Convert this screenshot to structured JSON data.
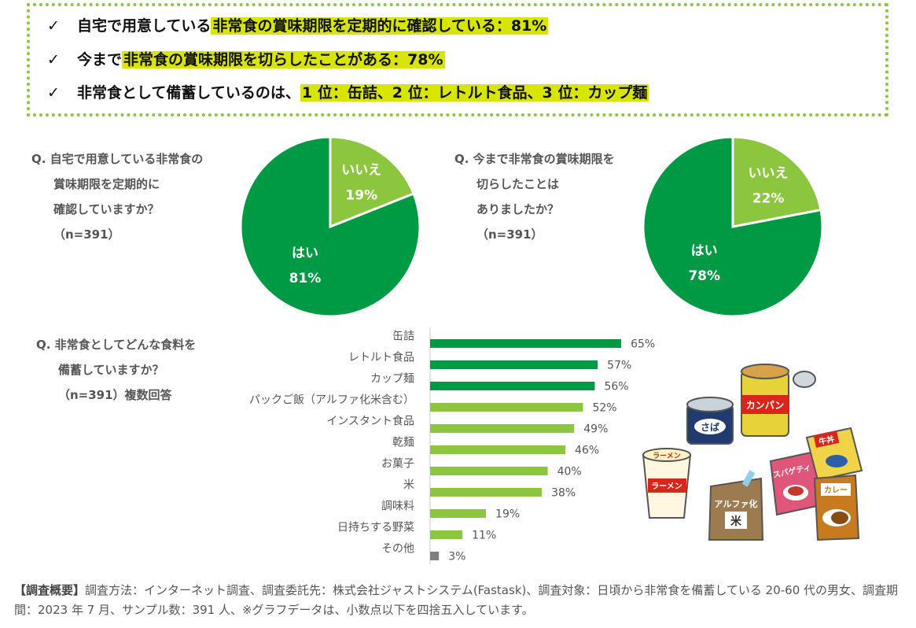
{
  "summary": {
    "line1_pre": "自宅で用意している",
    "line1_hl": "非常食の賞味期限を定期的に確認している：81%",
    "line2_pre": "今まで",
    "line2_hl": "非常食の賞味期限を切らしたことがある：78%",
    "line3_pre": "非常食として備蓄しているのは、",
    "line3_hl": "1 位：缶詰、2 位：レトルト食品、3 位：カップ麺",
    "check": "✓"
  },
  "q1": {
    "line1": "Q.  自宅で用意している非常食の",
    "line2": "賞味期限を定期的に",
    "line3": "確認していますか？",
    "line4": "（n=391）"
  },
  "q2": {
    "line1": "Q.  今まで非常食の賞味期限を",
    "line2": "切らしたことは",
    "line3": "ありましたか？",
    "line4": "（n=391）"
  },
  "q3": {
    "line1": "Q.  非常食としてどんな食料を",
    "line2": "備蓄していますか？",
    "line3": "（n=391）複数回答"
  },
  "chart_data": [
    {
      "type": "pie",
      "labels": [
        "はい",
        "いいえ"
      ],
      "values": [
        81,
        19
      ],
      "value_labels": [
        "81%",
        "19%"
      ],
      "colors": [
        "#009944",
        "#8cc63f"
      ]
    },
    {
      "type": "pie",
      "labels": [
        "はい",
        "いいえ"
      ],
      "values": [
        78,
        22
      ],
      "value_labels": [
        "78%",
        "22%"
      ],
      "colors": [
        "#009944",
        "#8cc63f"
      ]
    },
    {
      "type": "bar",
      "orientation": "horizontal",
      "categories": [
        "缶詰",
        "レトルト食品",
        "カップ麺",
        "パックご飯（アルファ化米含む）",
        "インスタント食品",
        "乾麺",
        "お菓子",
        "米",
        "調味料",
        "日持ちする野菜",
        "その他"
      ],
      "values": [
        65,
        57,
        56,
        52,
        49,
        46,
        40,
        38,
        19,
        11,
        3
      ],
      "value_labels": [
        "65%",
        "57%",
        "56%",
        "52%",
        "49%",
        "46%",
        "40%",
        "38%",
        "19%",
        "11%",
        "3%"
      ],
      "colors": [
        "#009944",
        "#009944",
        "#009944",
        "#8cc63f",
        "#8cc63f",
        "#8cc63f",
        "#8cc63f",
        "#8cc63f",
        "#8cc63f",
        "#8cc63f",
        "#808080"
      ]
    }
  ],
  "illustration": {
    "can_saba": "さば",
    "can_kanpan": "カンパン",
    "cup_ramen_top": "ラーメン",
    "cup_ramen_side": "ラーメン",
    "alpha_rice_1": "アルファ化",
    "alpha_rice_2": "米",
    "spaghetti": "スパゲティ",
    "gyudon": "牛丼",
    "curry": "カレー"
  },
  "footnote": {
    "head": "【調査概要】",
    "body": "調査方法：インターネット調査、調査委託先：株式会社ジャストシステム(Fastask)、調査対象：日頃から非常食を備蓄している 20-60 代の男女、調査期間：2023 年 7 月、サンプル数：391 人、※グラフデータは、小数点以下を四捨五入しています。"
  }
}
